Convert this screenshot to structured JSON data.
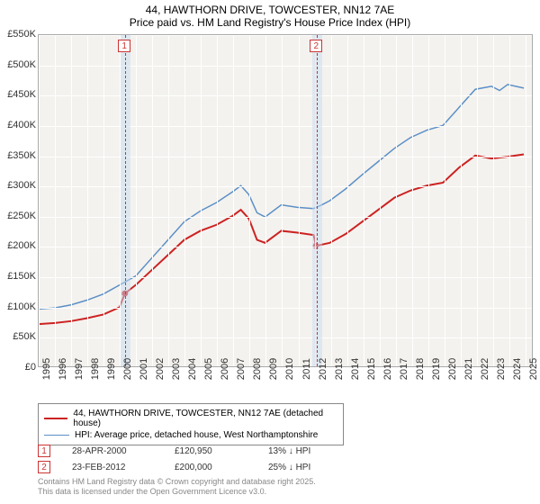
{
  "title": "44, HAWTHORN DRIVE, TOWCESTER, NN12 7AE",
  "subtitle": "Price paid vs. HM Land Registry's House Price Index (HPI)",
  "chart": {
    "type": "line",
    "background_color": "#f4f2ee",
    "grid_color": "#ffffff",
    "border_color": "#aaaaaa",
    "xlim": [
      1995,
      2025.5
    ],
    "ylim": [
      0,
      550
    ],
    "y_ticks": [
      0,
      50,
      100,
      150,
      200,
      250,
      300,
      350,
      400,
      450,
      500,
      550
    ],
    "y_tick_labels": [
      "£0",
      "£50K",
      "£100K",
      "£150K",
      "£200K",
      "£250K",
      "£300K",
      "£350K",
      "£400K",
      "£450K",
      "£500K",
      "£550K"
    ],
    "x_ticks": [
      1995,
      1996,
      1997,
      1998,
      1999,
      2000,
      2001,
      2002,
      2003,
      2004,
      2005,
      2006,
      2007,
      2008,
      2009,
      2010,
      2011,
      2012,
      2013,
      2014,
      2015,
      2016,
      2017,
      2018,
      2019,
      2020,
      2021,
      2022,
      2023,
      2024,
      2025
    ],
    "label_fontsize": 11,
    "series": [
      {
        "name": "price_paid",
        "color": "#cc2222",
        "line_width": 2,
        "data": [
          [
            1995,
            70
          ],
          [
            1996,
            72
          ],
          [
            1997,
            75
          ],
          [
            1998,
            80
          ],
          [
            1999,
            86
          ],
          [
            2000,
            98
          ],
          [
            2000.33,
            120.95
          ],
          [
            2001,
            135
          ],
          [
            2002,
            160
          ],
          [
            2003,
            185
          ],
          [
            2004,
            210
          ],
          [
            2005,
            225
          ],
          [
            2006,
            235
          ],
          [
            2007,
            250
          ],
          [
            2007.5,
            260
          ],
          [
            2008,
            245
          ],
          [
            2008.5,
            210
          ],
          [
            2009,
            205
          ],
          [
            2010,
            225
          ],
          [
            2011,
            222
          ],
          [
            2012,
            218
          ],
          [
            2012.15,
            200
          ],
          [
            2013,
            205
          ],
          [
            2014,
            220
          ],
          [
            2015,
            240
          ],
          [
            2016,
            260
          ],
          [
            2017,
            280
          ],
          [
            2018,
            292
          ],
          [
            2019,
            300
          ],
          [
            2020,
            305
          ],
          [
            2021,
            330
          ],
          [
            2022,
            350
          ],
          [
            2023,
            345
          ],
          [
            2024,
            348
          ],
          [
            2025,
            352
          ]
        ]
      },
      {
        "name": "hpi",
        "color": "#5b8fc7",
        "line_width": 1.5,
        "data": [
          [
            1995,
            95
          ],
          [
            1996,
            97
          ],
          [
            1997,
            102
          ],
          [
            1998,
            110
          ],
          [
            1999,
            120
          ],
          [
            2000,
            135
          ],
          [
            2001,
            150
          ],
          [
            2002,
            180
          ],
          [
            2003,
            210
          ],
          [
            2004,
            240
          ],
          [
            2005,
            258
          ],
          [
            2006,
            272
          ],
          [
            2007,
            290
          ],
          [
            2007.5,
            300
          ],
          [
            2008,
            285
          ],
          [
            2008.5,
            255
          ],
          [
            2009,
            248
          ],
          [
            2010,
            268
          ],
          [
            2011,
            264
          ],
          [
            2012,
            262
          ],
          [
            2012.5,
            268
          ],
          [
            2013,
            275
          ],
          [
            2014,
            295
          ],
          [
            2015,
            318
          ],
          [
            2016,
            340
          ],
          [
            2017,
            362
          ],
          [
            2018,
            380
          ],
          [
            2019,
            392
          ],
          [
            2020,
            400
          ],
          [
            2021,
            430
          ],
          [
            2022,
            460
          ],
          [
            2023,
            465
          ],
          [
            2023.5,
            458
          ],
          [
            2024,
            468
          ],
          [
            2025,
            462
          ]
        ]
      }
    ],
    "markers": [
      {
        "id": "1",
        "x": 2000.33,
        "y": 120.95,
        "band_width_years": 0.3
      },
      {
        "id": "2",
        "x": 2012.15,
        "y": 200,
        "band_width_years": 0.3
      }
    ]
  },
  "legend": {
    "items": [
      {
        "color": "#cc2222",
        "width": 2,
        "label": "44, HAWTHORN DRIVE, TOWCESTER, NN12 7AE (detached house)"
      },
      {
        "color": "#5b8fc7",
        "width": 1.5,
        "label": "HPI: Average price, detached house, West Northamptonshire"
      }
    ]
  },
  "sales": [
    {
      "id": "1",
      "date": "28-APR-2000",
      "price": "£120,950",
      "delta": "13% ↓ HPI"
    },
    {
      "id": "2",
      "date": "23-FEB-2012",
      "price": "£200,000",
      "delta": "25% ↓ HPI"
    }
  ],
  "footer": {
    "line1": "Contains HM Land Registry data © Crown copyright and database right 2025.",
    "line2": "This data is licensed under the Open Government Licence v3.0."
  }
}
